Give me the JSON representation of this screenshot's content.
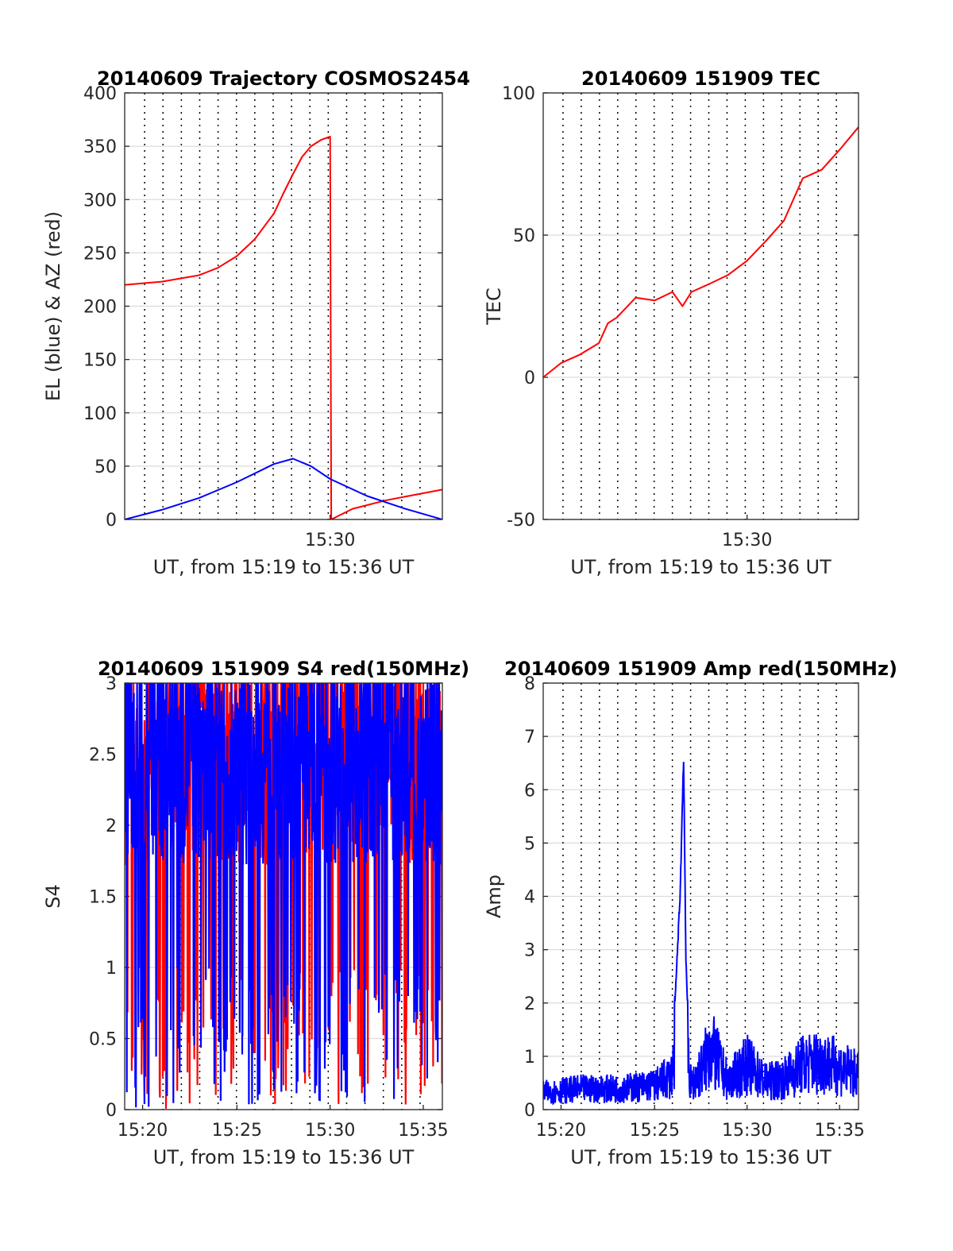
{
  "chart_data": [
    {
      "type": "line",
      "title": "20140609 Trajectory COSMOS2454",
      "xlabel": "UT, from 15:19 to 15:36 UT",
      "ylabel": "EL (blue) & AZ (red)",
      "xlim": [
        15.317,
        15.6
      ],
      "ylim": [
        0,
        400
      ],
      "yticks": [
        "0",
        "50",
        "100",
        "150",
        "200",
        "250",
        "300",
        "350",
        "400"
      ],
      "xticks": [
        "15:30"
      ],
      "grid": true,
      "series": [
        {
          "color": "#ff0000",
          "x": [
            15.317,
            15.35,
            15.383,
            15.4,
            15.417,
            15.433,
            15.45,
            15.458,
            15.467,
            15.475,
            15.483,
            15.492,
            15.5,
            15.501,
            15.52,
            15.55,
            15.6
          ],
          "values": [
            220,
            223,
            229,
            236,
            247,
            263,
            287,
            305,
            324,
            340,
            350,
            356,
            359,
            0,
            10,
            18,
            28
          ]
        },
        {
          "color": "#0000ff",
          "x": [
            15.317,
            15.35,
            15.383,
            15.417,
            15.45,
            15.467,
            15.483,
            15.5,
            15.533,
            15.567,
            15.6
          ],
          "values": [
            0,
            9,
            20,
            35,
            52,
            57,
            50,
            38,
            22,
            10,
            0
          ]
        }
      ]
    },
    {
      "type": "line",
      "title": "20140609 151909 TEC",
      "xlabel": "UT, from 15:19 to 15:36 UT",
      "ylabel": "TEC",
      "xlim": [
        15.317,
        15.6
      ],
      "ylim": [
        -50,
        100
      ],
      "yticks": [
        "-50",
        "0",
        "50",
        "100"
      ],
      "xticks": [
        "15:30"
      ],
      "grid": true,
      "series": [
        {
          "color": "#ff0000",
          "x": [
            15.317,
            15.333,
            15.35,
            15.367,
            15.375,
            15.383,
            15.4,
            15.417,
            15.433,
            15.442,
            15.45,
            15.467,
            15.483,
            15.5,
            15.517,
            15.533,
            15.55,
            15.567,
            15.583,
            15.6
          ],
          "values": [
            0,
            5,
            8,
            12,
            19,
            21,
            28,
            27,
            30,
            25,
            30,
            33,
            36,
            41,
            48,
            55,
            70,
            73,
            80,
            88
          ]
        }
      ]
    },
    {
      "type": "line",
      "title": "20140609 151909 S4 red(150MHz)",
      "xlabel": "UT, from 15:19 to 15:36 UT",
      "ylabel": "S4",
      "xlim": [
        15.317,
        15.6
      ],
      "ylim": [
        0,
        3
      ],
      "yticks": [
        "0",
        "0.5",
        "1",
        "1.5",
        "2",
        "2.5",
        "3"
      ],
      "xticks": [
        "15:20",
        "15:25",
        "15:30",
        "15:35"
      ],
      "grid": true,
      "series": [
        {
          "color": "#ff0000",
          "description_values": "noisy S4, 0 to 3"
        },
        {
          "color": "#0000ff",
          "description_values": "noisy S4, 0 to 3"
        }
      ]
    },
    {
      "type": "line",
      "title": "20140609 151909 Amp red(150MHz)",
      "xlabel": "UT, from 15:19 to 15:36 UT",
      "ylabel": "Amp",
      "xlim": [
        15.317,
        15.6
      ],
      "ylim": [
        0,
        8
      ],
      "yticks": [
        "0",
        "1",
        "2",
        "3",
        "4",
        "5",
        "6",
        "7",
        "8"
      ],
      "xticks": [
        "15:20",
        "15:25",
        "15:30",
        "15:35"
      ],
      "grid": true,
      "series": [
        {
          "color": "#0000ff",
          "x": [
            15.317,
            15.35,
            15.383,
            15.417,
            15.433,
            15.44,
            15.443,
            15.445,
            15.448,
            15.45,
            15.46,
            15.467,
            15.483,
            15.5,
            15.517,
            15.533,
            15.55,
            15.567,
            15.583,
            15.6
          ],
          "values": [
            0.5,
            0.6,
            0.6,
            0.7,
            1.0,
            4.2,
            6.85,
            3.0,
            1.0,
            0.7,
            1.2,
            1.8,
            0.8,
            1.3,
            0.8,
            0.9,
            1.3,
            1.4,
            1.2,
            1.0
          ]
        }
      ]
    }
  ]
}
